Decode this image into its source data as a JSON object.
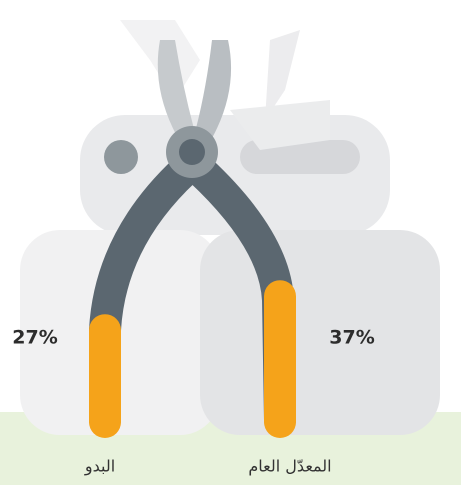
{
  "chart_data": {
    "type": "bar",
    "categories": [
      "البدو",
      "المعدّل العام"
    ],
    "values": [
      27,
      37
    ],
    "value_labels": [
      "27%",
      "37%"
    ],
    "color": "#f5a31a"
  }
}
